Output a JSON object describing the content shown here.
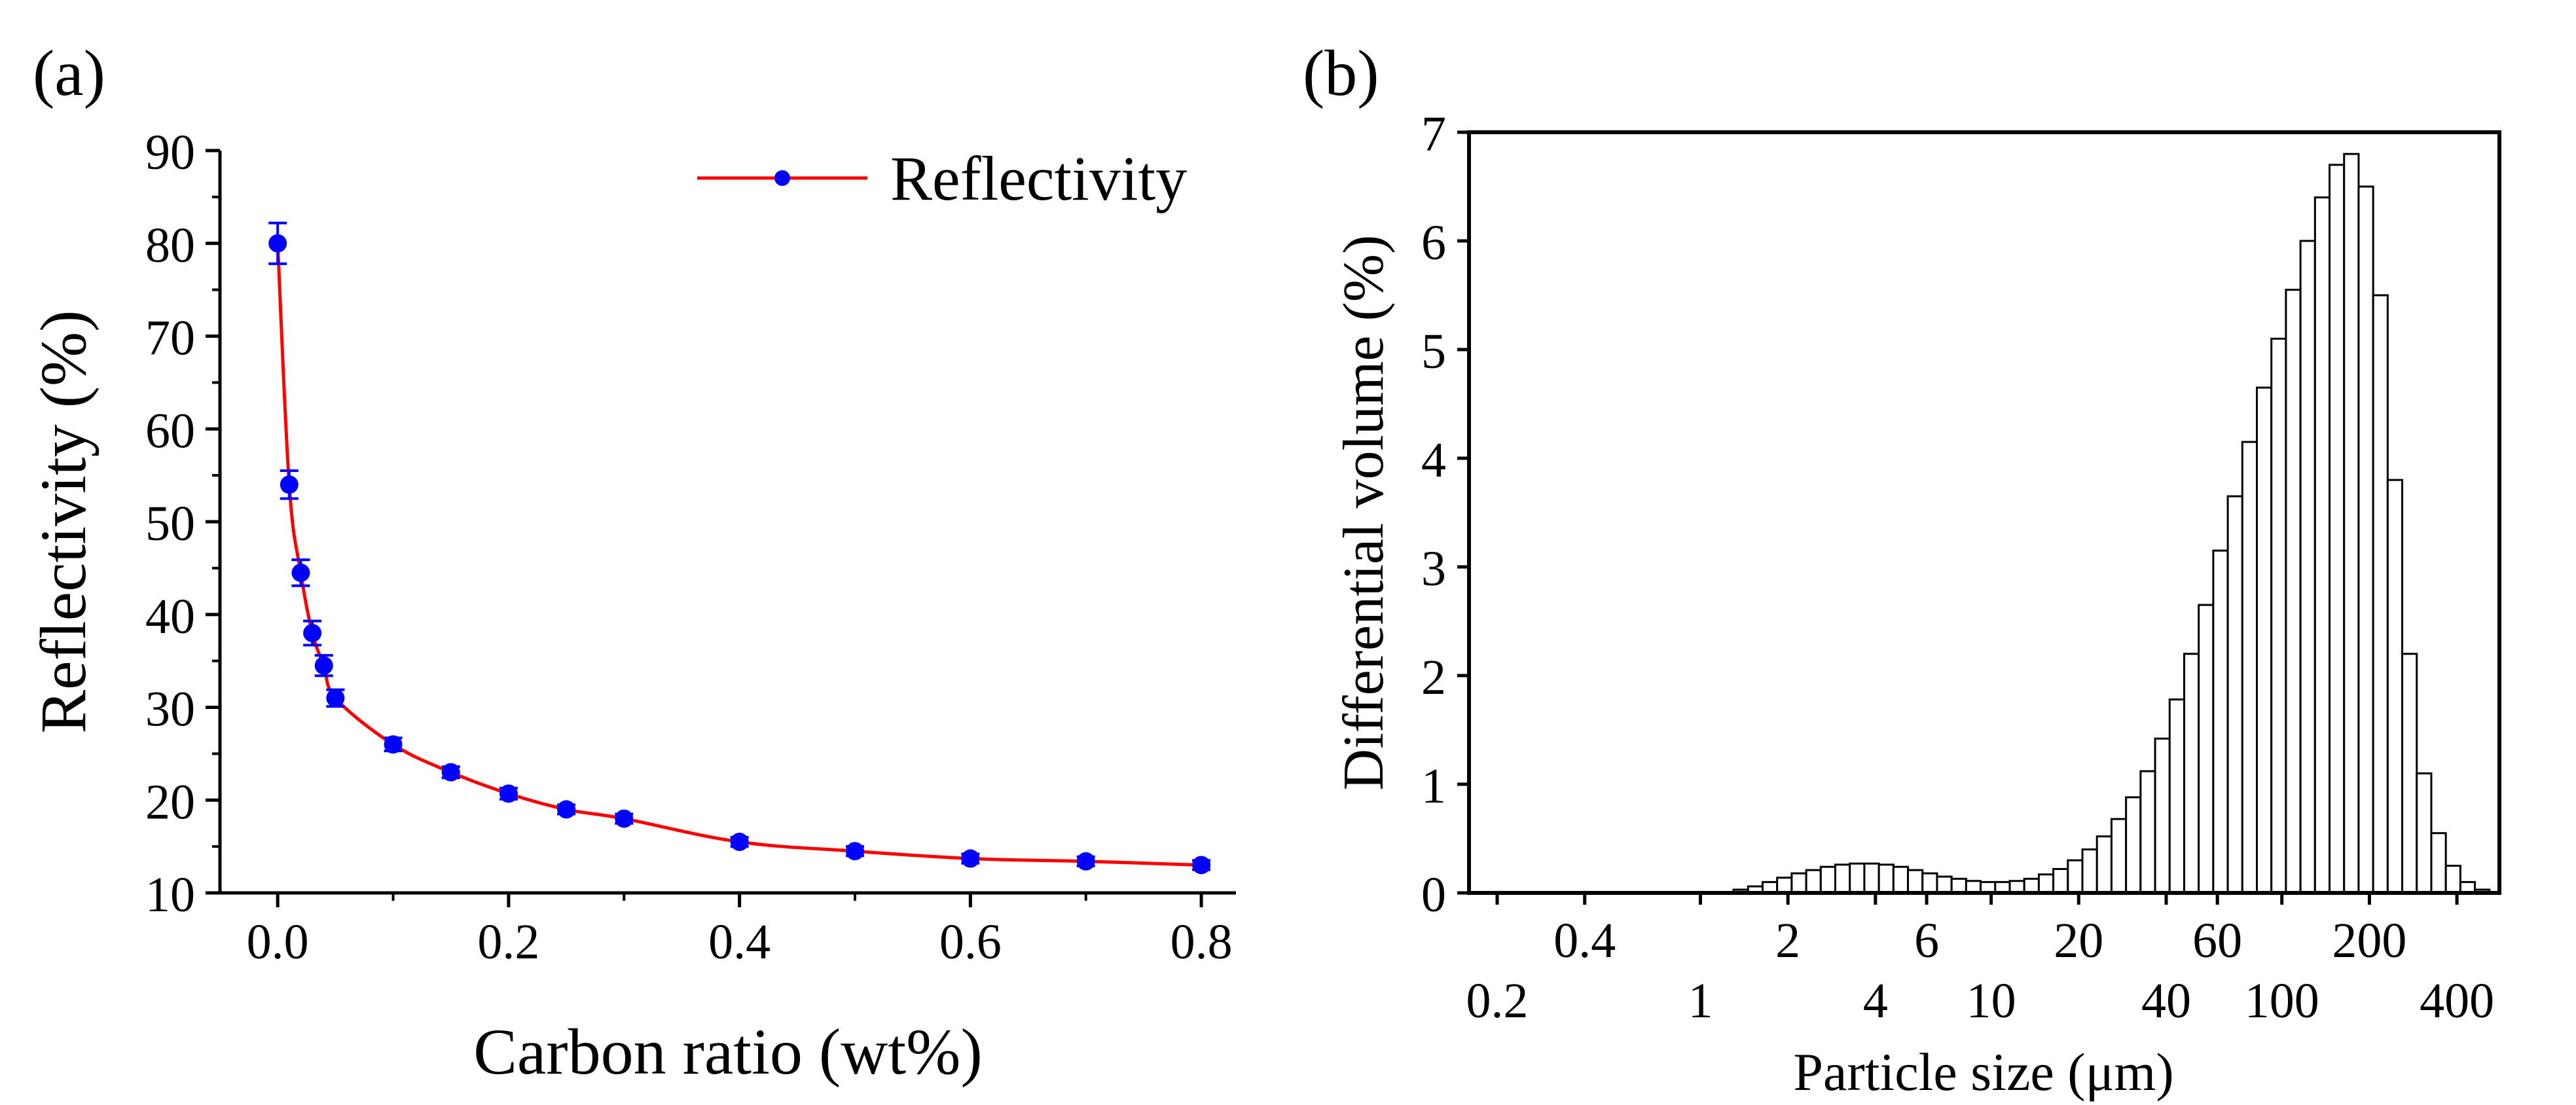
{
  "chart_data": [
    {
      "panel_label": "(a)",
      "type": "line",
      "xlabel": "Carbon ratio (wt%)",
      "ylabel": "Reflectivity (%)",
      "xlim": [
        -0.05,
        0.83
      ],
      "ylim": [
        10,
        90
      ],
      "x_ticks": [
        0.0,
        0.2,
        0.4,
        0.6,
        0.8
      ],
      "x_tick_labels": [
        "0.0",
        "0.2",
        "0.4",
        "0.6",
        "0.8"
      ],
      "x_minor_ticks": [
        0.1,
        0.3,
        0.5,
        0.7
      ],
      "y_ticks": [
        10,
        20,
        30,
        40,
        50,
        60,
        70,
        80,
        90
      ],
      "y_tick_labels": [
        "10",
        "20",
        "30",
        "40",
        "50",
        "60",
        "70",
        "80",
        "90"
      ],
      "legend": {
        "label": "Reflectivity",
        "placement": "top-right"
      },
      "series": [
        {
          "name": "Reflectivity",
          "line_color": "#ff0000",
          "marker_color": "#0000ff",
          "x": [
            0.0,
            0.01,
            0.02,
            0.03,
            0.04,
            0.05,
            0.1,
            0.15,
            0.2,
            0.25,
            0.3,
            0.4,
            0.5,
            0.6,
            0.7,
            0.8
          ],
          "y": [
            80.0,
            54.0,
            44.5,
            38.0,
            34.5,
            31.0,
            26.0,
            23.0,
            20.7,
            19.0,
            18.0,
            15.5,
            14.5,
            13.7,
            13.4,
            13.0
          ],
          "error": [
            2.2,
            1.5,
            1.4,
            1.3,
            1.1,
            0.9,
            0.7,
            0.6,
            0.6,
            0.5,
            0.5,
            0.5,
            0.5,
            0.5,
            0.5,
            0.5
          ]
        }
      ]
    },
    {
      "panel_label": "(b)",
      "type": "bar",
      "xlabel": "Particle size (μm)",
      "ylabel": "Differential volume (%)",
      "x_scale": "log",
      "xlim": [
        0.16,
        560
      ],
      "ylim": [
        0,
        7
      ],
      "y_ticks": [
        0,
        1,
        2,
        3,
        4,
        5,
        6,
        7
      ],
      "y_tick_labels": [
        "0",
        "1",
        "2",
        "3",
        "4",
        "5",
        "6",
        "7"
      ],
      "x_ticks_upper": [
        0.4,
        2,
        6,
        20,
        60,
        200
      ],
      "x_tick_labels_upper": [
        "0.4",
        "2",
        "6",
        "20",
        "60",
        "200"
      ],
      "x_ticks_lower": [
        0.2,
        1,
        4,
        10,
        40,
        100,
        400
      ],
      "x_tick_labels_lower": [
        "0.2",
        "1",
        "4",
        "10",
        "40",
        "100",
        "400"
      ],
      "bins_per_decade": 20,
      "first_bin_lower_edge": 1.3,
      "values": [
        0.03,
        0.06,
        0.1,
        0.14,
        0.18,
        0.21,
        0.24,
        0.26,
        0.27,
        0.27,
        0.26,
        0.24,
        0.21,
        0.18,
        0.15,
        0.13,
        0.11,
        0.1,
        0.1,
        0.11,
        0.13,
        0.17,
        0.22,
        0.3,
        0.4,
        0.52,
        0.68,
        0.88,
        1.12,
        1.42,
        1.78,
        2.2,
        2.65,
        3.15,
        3.65,
        4.15,
        4.65,
        5.1,
        5.55,
        6.0,
        6.4,
        6.7,
        6.8,
        6.5,
        5.5,
        3.8,
        2.2,
        1.1,
        0.55,
        0.25,
        0.1,
        0.03
      ]
    }
  ]
}
